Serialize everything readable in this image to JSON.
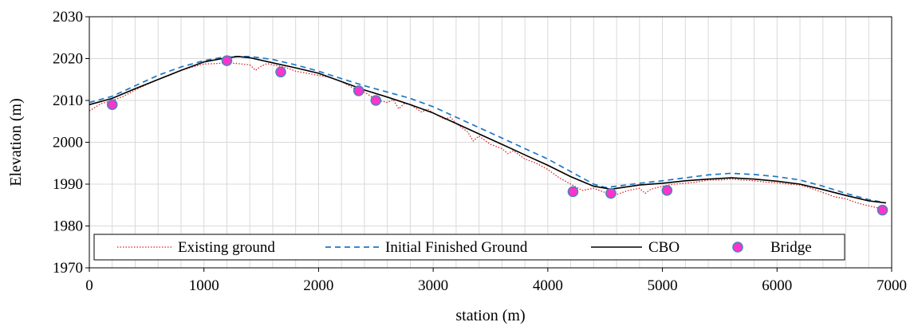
{
  "chart_data": {
    "type": "line",
    "title": "",
    "xlabel": "station (m)",
    "ylabel": "Elevation (m)",
    "xlim": [
      0,
      7000
    ],
    "ylim": [
      1970,
      2030
    ],
    "x_ticks": [
      0,
      1000,
      2000,
      3000,
      4000,
      5000,
      6000,
      7000
    ],
    "y_ticks": [
      1970,
      1980,
      1990,
      2000,
      2010,
      2020,
      2030
    ],
    "x_tick_labels": [
      "0",
      "1000",
      "2000",
      "3000",
      "4000",
      "5000",
      "6000",
      "7000"
    ],
    "y_tick_labels": [
      "1970",
      "1980",
      "1990",
      "2000",
      "2010",
      "2020",
      "2030"
    ],
    "grid": true,
    "legend_position": "bottom",
    "series": [
      {
        "name": "Existing ground",
        "style": "dotted",
        "color": "#e02020",
        "x": [
          0,
          100,
          200,
          300,
          400,
          500,
          600,
          700,
          800,
          900,
          1000,
          1100,
          1200,
          1300,
          1400,
          1450,
          1500,
          1550,
          1600,
          1700,
          1800,
          1900,
          2000,
          2100,
          2200,
          2300,
          2400,
          2500,
          2600,
          2650,
          2700,
          2750,
          2800,
          2900,
          2950,
          3000,
          3100,
          3150,
          3200,
          3300,
          3350,
          3400,
          3500,
          3600,
          3650,
          3700,
          3800,
          3900,
          4000,
          4100,
          4200,
          4300,
          4400,
          4500,
          4600,
          4700,
          4800,
          4850,
          4900,
          5000,
          5100,
          5200,
          5300,
          5400,
          5500,
          5600,
          5700,
          5800,
          5900,
          6000,
          6100,
          6200,
          6300,
          6400,
          6500,
          6600,
          6700,
          6800,
          6900,
          6950
        ],
        "y": [
          2007.5,
          2009.2,
          2010.0,
          2011.0,
          2012.5,
          2013.8,
          2015.0,
          2016.0,
          2017.2,
          2018.0,
          2018.7,
          2018.8,
          2019.0,
          2018.8,
          2018.5,
          2017.2,
          2018.2,
          2018.8,
          2018.5,
          2018.0,
          2017.0,
          2016.5,
          2016.0,
          2015.5,
          2014.5,
          2013.0,
          2012.0,
          2010.2,
          2009.5,
          2010.2,
          2008.0,
          2009.3,
          2009.0,
          2007.2,
          2008.0,
          2007.0,
          2005.5,
          2006.0,
          2004.5,
          2002.5,
          2000.3,
          2001.5,
          1999.5,
          1998.5,
          1997.3,
          1998.0,
          1996.0,
          1995.0,
          1993.5,
          1991.5,
          1990.0,
          1988.5,
          1989.0,
          1988.0,
          1987.5,
          1988.5,
          1989.0,
          1987.8,
          1988.8,
          1989.5,
          1990.0,
          1990.2,
          1990.5,
          1991.0,
          1991.0,
          1991.2,
          1991.0,
          1990.8,
          1990.5,
          1990.3,
          1990.0,
          1989.8,
          1989.0,
          1988.0,
          1987.0,
          1986.5,
          1985.5,
          1984.8,
          1984.2,
          1983.8
        ]
      },
      {
        "name": "Initial Finished Ground",
        "style": "dashed",
        "color": "#1f77c4",
        "x": [
          0,
          200,
          400,
          600,
          800,
          1000,
          1200,
          1400,
          1600,
          1800,
          2000,
          2200,
          2400,
          2600,
          2800,
          3000,
          3200,
          3400,
          3600,
          3800,
          4000,
          4200,
          4400,
          4500,
          4600,
          4800,
          5000,
          5200,
          5400,
          5600,
          5800,
          6000,
          6200,
          6400,
          6600,
          6800,
          6950
        ],
        "y": [
          2009.5,
          2011.0,
          2013.5,
          2016.0,
          2018.0,
          2019.5,
          2020.5,
          2020.5,
          2019.8,
          2018.5,
          2017.0,
          2015.2,
          2013.5,
          2012.0,
          2010.5,
          2008.5,
          2006.0,
          2003.5,
          2001.0,
          1998.5,
          1996.0,
          1993.0,
          1990.0,
          1989.2,
          1989.5,
          1990.2,
          1990.8,
          1991.5,
          1992.2,
          1992.6,
          1992.3,
          1991.8,
          1991.0,
          1989.5,
          1987.8,
          1986.3,
          1985.5
        ]
      },
      {
        "name": "CBO",
        "style": "solid",
        "color": "#000000",
        "x": [
          0,
          200,
          400,
          600,
          800,
          1000,
          1200,
          1300,
          1400,
          1600,
          1800,
          2000,
          2200,
          2400,
          2600,
          2800,
          3000,
          3200,
          3400,
          3600,
          3800,
          4000,
          4200,
          4400,
          4550,
          4600,
          4800,
          5000,
          5200,
          5400,
          5600,
          5800,
          6000,
          6200,
          6400,
          6600,
          6800,
          6950
        ],
        "y": [
          2009.0,
          2010.5,
          2012.8,
          2015.0,
          2017.2,
          2019.2,
          2020.2,
          2020.5,
          2020.2,
          2019.0,
          2017.8,
          2016.5,
          2014.5,
          2012.5,
          2010.8,
          2009.0,
          2007.0,
          2004.5,
          2002.0,
          1999.5,
          1997.0,
          1994.5,
          1991.8,
          1989.5,
          1988.8,
          1989.0,
          1989.8,
          1990.2,
          1990.8,
          1991.2,
          1991.5,
          1991.2,
          1990.7,
          1990.0,
          1988.7,
          1987.3,
          1986.0,
          1985.5
        ]
      },
      {
        "name": "Bridge",
        "style": "marker",
        "color": "#ff33cc",
        "edge_color": "#4f81bd",
        "x": [
          200,
          1200,
          1670,
          2350,
          2500,
          4220,
          4550,
          5040,
          6920
        ],
        "y": [
          2009.0,
          2019.5,
          2016.8,
          2012.3,
          2010.0,
          1988.2,
          1987.8,
          1988.5,
          1983.8
        ]
      }
    ]
  }
}
